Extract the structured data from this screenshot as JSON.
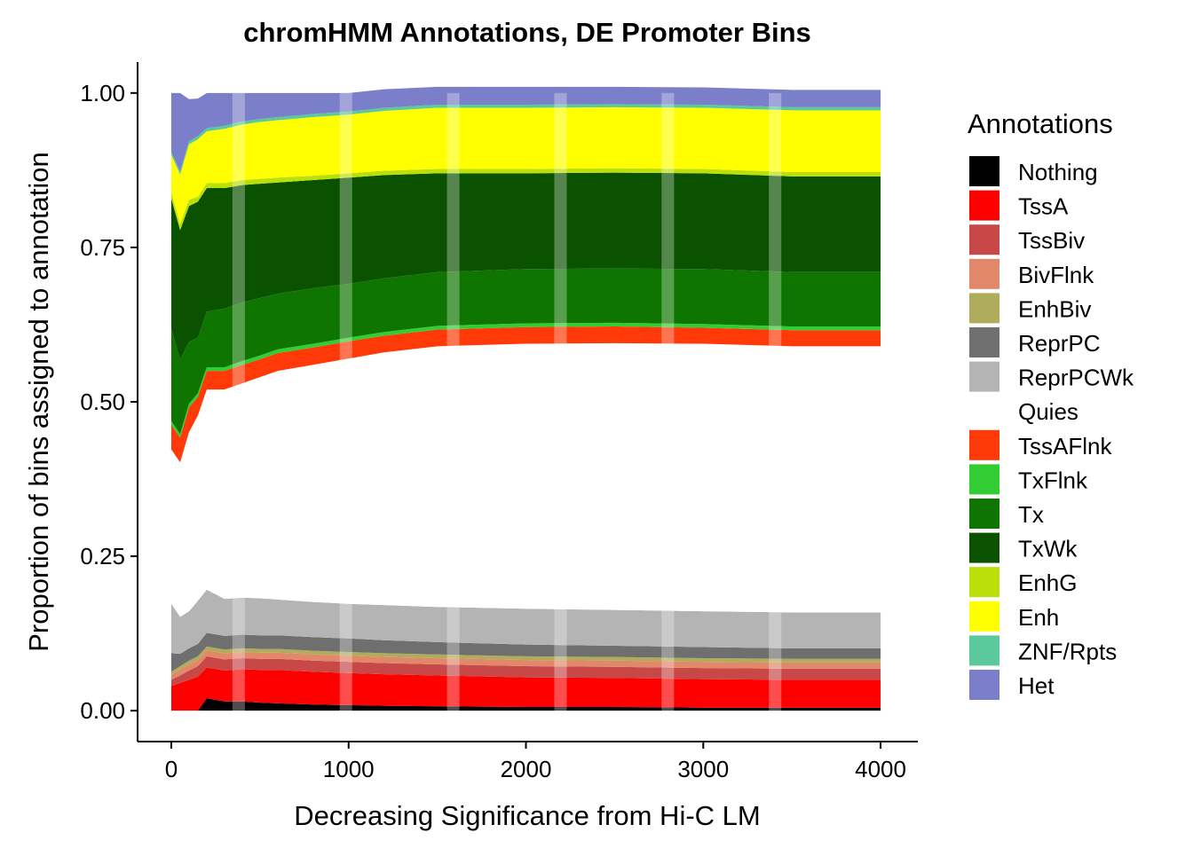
{
  "chart_data": {
    "type": "area",
    "title": "chromHMM Annotations, DE Promoter Bins",
    "xlabel": "Decreasing Significance from Hi-C LM",
    "ylabel": "Proportion of bins assigned to annotation",
    "xlim": [
      -190,
      4210
    ],
    "ylim": [
      -0.05,
      1.05
    ],
    "x_ticks": [
      0,
      1000,
      2000,
      3000,
      4000
    ],
    "y_ticks": [
      0,
      0.25,
      0.5,
      0.75,
      1.0
    ],
    "x_tick_labels": [
      "0",
      "1000",
      "2000",
      "3000",
      "4000"
    ],
    "y_tick_labels": [
      "0.00",
      "0.25",
      "0.50",
      "0.75",
      "1.00"
    ],
    "grid": false,
    "legend": {
      "title": "Annotations",
      "position": "right",
      "entries": [
        "Nothing",
        "TssA",
        "TssBiv",
        "BivFlnk",
        "EnhBiv",
        "ReprPC",
        "ReprPCWk",
        "Quies",
        "TssAFlnk",
        "TxFlnk",
        "Tx",
        "TxWk",
        "EnhG",
        "Enh",
        "ZNF/Rpts",
        "Het"
      ]
    },
    "x": [
      0,
      50,
      100,
      150,
      200,
      300,
      400,
      500,
      600,
      800,
      1000,
      1200,
      1500,
      2000,
      2500,
      3000,
      3500,
      4000
    ],
    "series": [
      {
        "name": "Nothing",
        "color": "#000000",
        "values": [
          0.0,
          0.0,
          0.0,
          0.0,
          0.02,
          0.015,
          0.015,
          0.013,
          0.012,
          0.01,
          0.009,
          0.008,
          0.007,
          0.006,
          0.006,
          0.005,
          0.005,
          0.005
        ]
      },
      {
        "name": "TssA",
        "color": "#FF0000",
        "values": [
          0.04,
          0.045,
          0.05,
          0.055,
          0.05,
          0.05,
          0.052,
          0.053,
          0.054,
          0.053,
          0.052,
          0.051,
          0.05,
          0.048,
          0.047,
          0.046,
          0.045,
          0.045
        ]
      },
      {
        "name": "TssBiv",
        "color": "#C84848",
        "values": [
          0.01,
          0.012,
          0.015,
          0.017,
          0.018,
          0.018,
          0.018,
          0.018,
          0.018,
          0.018,
          0.018,
          0.018,
          0.018,
          0.018,
          0.018,
          0.018,
          0.018,
          0.018
        ]
      },
      {
        "name": "BivFlnk",
        "color": "#E3876B",
        "values": [
          0.008,
          0.01,
          0.01,
          0.01,
          0.01,
          0.01,
          0.01,
          0.01,
          0.01,
          0.01,
          0.01,
          0.01,
          0.01,
          0.01,
          0.01,
          0.01,
          0.01,
          0.01
        ]
      },
      {
        "name": "EnhBiv",
        "color": "#AFAC5B",
        "values": [
          0.005,
          0.005,
          0.006,
          0.006,
          0.006,
          0.006,
          0.006,
          0.006,
          0.006,
          0.006,
          0.006,
          0.006,
          0.006,
          0.006,
          0.006,
          0.006,
          0.006,
          0.006
        ]
      },
      {
        "name": "ReprPC",
        "color": "#6F6F6F",
        "values": [
          0.03,
          0.02,
          0.02,
          0.02,
          0.022,
          0.022,
          0.022,
          0.022,
          0.022,
          0.022,
          0.022,
          0.021,
          0.02,
          0.019,
          0.018,
          0.018,
          0.017,
          0.017
        ]
      },
      {
        "name": "ReprPCWk",
        "color": "#B4B4B4",
        "values": [
          0.08,
          0.06,
          0.06,
          0.07,
          0.07,
          0.06,
          0.06,
          0.06,
          0.058,
          0.057,
          0.056,
          0.057,
          0.057,
          0.058,
          0.058,
          0.058,
          0.058,
          0.058
        ]
      },
      {
        "name": "Quies",
        "color": "#FFFFFF",
        "values": [
          0.25,
          0.25,
          0.29,
          0.3,
          0.324,
          0.339,
          0.347,
          0.358,
          0.37,
          0.384,
          0.397,
          0.409,
          0.422,
          0.429,
          0.432,
          0.433,
          0.431,
          0.431
        ]
      },
      {
        "name": "TssAFlnk",
        "color": "#FF3A08",
        "values": [
          0.04,
          0.04,
          0.04,
          0.03,
          0.03,
          0.03,
          0.03,
          0.029,
          0.029,
          0.028,
          0.028,
          0.027,
          0.027,
          0.027,
          0.027,
          0.026,
          0.026,
          0.026
        ]
      },
      {
        "name": "TxFlnk",
        "color": "#32CD32",
        "values": [
          0.006,
          0.006,
          0.006,
          0.006,
          0.006,
          0.006,
          0.006,
          0.006,
          0.006,
          0.006,
          0.006,
          0.006,
          0.006,
          0.006,
          0.006,
          0.006,
          0.006,
          0.006
        ]
      },
      {
        "name": "Tx",
        "color": "#0E7600",
        "values": [
          0.15,
          0.12,
          0.1,
          0.09,
          0.09,
          0.095,
          0.095,
          0.093,
          0.09,
          0.09,
          0.087,
          0.087,
          0.087,
          0.088,
          0.088,
          0.089,
          0.088,
          0.088
        ]
      },
      {
        "name": "TxWk",
        "color": "#0B5200",
        "values": [
          0.21,
          0.21,
          0.22,
          0.22,
          0.2,
          0.195,
          0.19,
          0.185,
          0.18,
          0.175,
          0.172,
          0.167,
          0.16,
          0.155,
          0.155,
          0.155,
          0.155,
          0.155
        ]
      },
      {
        "name": "EnhG",
        "color": "#BADF0A",
        "values": [
          0.01,
          0.01,
          0.01,
          0.008,
          0.008,
          0.008,
          0.008,
          0.008,
          0.008,
          0.007,
          0.007,
          0.007,
          0.007,
          0.007,
          0.007,
          0.007,
          0.007,
          0.007
        ]
      },
      {
        "name": "Enh",
        "color": "#FFFF00",
        "values": [
          0.061,
          0.08,
          0.09,
          0.093,
          0.084,
          0.088,
          0.09,
          0.092,
          0.093,
          0.095,
          0.095,
          0.097,
          0.099,
          0.099,
          0.099,
          0.099,
          0.1,
          0.1
        ]
      },
      {
        "name": "ZNF/Rpts",
        "color": "#5AC99C",
        "values": [
          0.005,
          0.005,
          0.005,
          0.005,
          0.005,
          0.005,
          0.005,
          0.005,
          0.005,
          0.005,
          0.005,
          0.005,
          0.005,
          0.005,
          0.005,
          0.005,
          0.005,
          0.005
        ]
      },
      {
        "name": "Het",
        "color": "#7B7EC8",
        "values": [
          0.095,
          0.127,
          0.068,
          0.061,
          0.057,
          0.053,
          0.046,
          0.042,
          0.039,
          0.034,
          0.03,
          0.03,
          0.029,
          0.029,
          0.028,
          0.028,
          0.028,
          0.028
        ]
      }
    ]
  }
}
